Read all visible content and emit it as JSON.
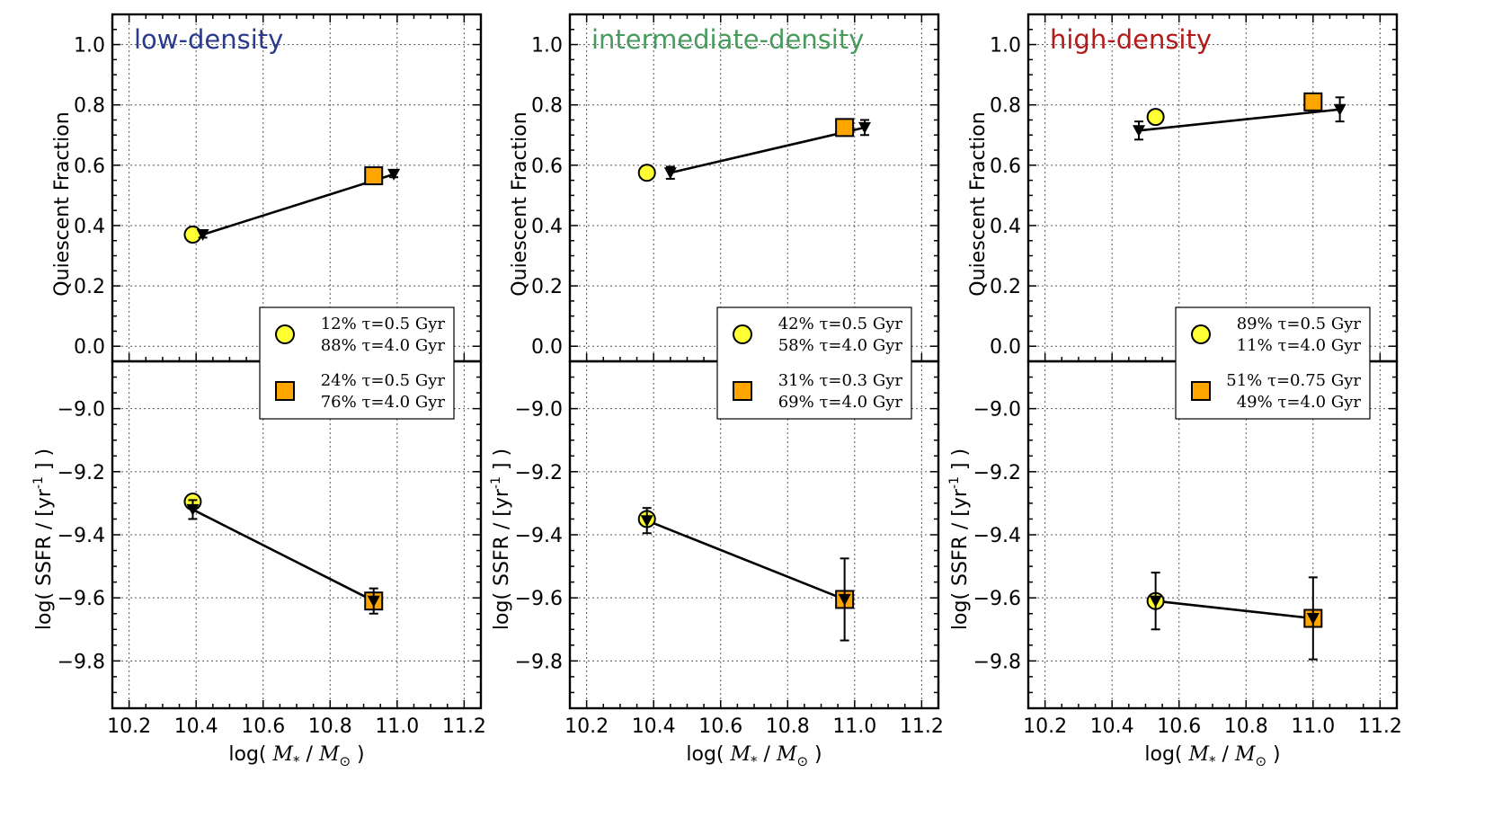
{
  "figure": {
    "xlabel_text": "log(",
    "xlabel_math_mass": "M",
    "xlabel_math_mass_sub": "*",
    "xlabel_sep": " / ",
    "xlabel_math_sun": "M",
    "xlabel_math_sun_sub": "⊙",
    "xlabel_close": " )",
    "top_ylabel": "Quiescent Fraction",
    "bottom_ylabel_prefix": "log( SSFR / [yr",
    "bottom_ylabel_sup": "-1",
    "bottom_ylabel_suffix": "] )"
  },
  "chart_data": [
    {
      "type": "scatter",
      "title": "low-density",
      "title_color": "#2b3b8c",
      "xlim": [
        10.15,
        11.25
      ],
      "x_ticks": [
        "10.2",
        "10.4",
        "10.6",
        "10.8",
        "11.0",
        "11.2"
      ],
      "grid": true,
      "quiescent_fraction": {
        "ylabel": "Quiescent Fraction",
        "ylim": [
          -0.05,
          1.1
        ],
        "y_ticks": [
          "0.0",
          "0.2",
          "0.4",
          "0.6",
          "0.8",
          "1.0"
        ],
        "observed": {
          "marker": "triangle-down",
          "x": [
            10.42,
            10.99
          ],
          "y": [
            0.37,
            0.57
          ],
          "err": [
            0.01,
            0.01
          ]
        },
        "model_circle": {
          "x": 10.39,
          "y": 0.37
        },
        "model_square": {
          "x": 10.93,
          "y": 0.565
        }
      },
      "ssfr": {
        "ylabel": "log( SSFR / [yr-1] )",
        "ylim": [
          -9.95,
          -8.85
        ],
        "y_ticks": [
          "−9.0",
          "−9.2",
          "−9.4",
          "−9.6",
          "−9.8"
        ],
        "observed": {
          "marker": "triangle-down",
          "x": [
            10.39,
            10.93
          ],
          "y": [
            -9.32,
            -9.61
          ],
          "err": [
            0.03,
            0.04
          ]
        },
        "model_circle": {
          "x": 10.39,
          "y": -9.295
        },
        "model_square": {
          "x": 10.93,
          "y": -9.61
        }
      },
      "legend": {
        "placement": "lower-right of top panel",
        "entries": [
          {
            "marker": "circle",
            "color": "#ffff33",
            "line1": "12% τ=0.5 Gyr",
            "line2": "88% τ=4.0 Gyr"
          },
          {
            "marker": "square",
            "color": "#ffa500",
            "line1": "24% τ=0.5 Gyr",
            "line2": "76% τ=4.0 Gyr"
          }
        ]
      }
    },
    {
      "type": "scatter",
      "title": "intermediate-density",
      "title_color": "#4a9a5e",
      "xlim": [
        10.15,
        11.25
      ],
      "x_ticks": [
        "10.2",
        "10.4",
        "10.6",
        "10.8",
        "11.0",
        "11.2"
      ],
      "grid": true,
      "quiescent_fraction": {
        "ylabel": "Quiescent Fraction",
        "ylim": [
          -0.05,
          1.1
        ],
        "y_ticks": [
          "0.0",
          "0.2",
          "0.4",
          "0.6",
          "0.8",
          "1.0"
        ],
        "observed": {
          "marker": "triangle-down",
          "x": [
            10.45,
            11.03
          ],
          "y": [
            0.575,
            0.725
          ],
          "err": [
            0.02,
            0.025
          ]
        },
        "model_circle": {
          "x": 10.38,
          "y": 0.575
        },
        "model_square": {
          "x": 10.97,
          "y": 0.725
        }
      },
      "ssfr": {
        "ylabel": "log( SSFR / [yr-1] )",
        "ylim": [
          -9.95,
          -8.85
        ],
        "y_ticks": [
          "−9.0",
          "−9.2",
          "−9.4",
          "−9.6",
          "−9.8"
        ],
        "observed": {
          "marker": "triangle-down",
          "x": [
            10.38,
            10.97
          ],
          "y": [
            -9.355,
            -9.605
          ],
          "err": [
            0.04,
            0.13
          ]
        },
        "model_circle": {
          "x": 10.38,
          "y": -9.35
        },
        "model_square": {
          "x": 10.97,
          "y": -9.605
        }
      },
      "legend": {
        "placement": "lower-right of top panel",
        "entries": [
          {
            "marker": "circle",
            "color": "#ffff33",
            "line1": "42% τ=0.5 Gyr",
            "line2": "58% τ=4.0 Gyr"
          },
          {
            "marker": "square",
            "color": "#ffa500",
            "line1": "31% τ=0.3 Gyr",
            "line2": "69% τ=4.0 Gyr"
          }
        ]
      }
    },
    {
      "type": "scatter",
      "title": "high-density",
      "title_color": "#b31b1b",
      "xlim": [
        10.15,
        11.25
      ],
      "x_ticks": [
        "10.2",
        "10.4",
        "10.6",
        "10.8",
        "11.0",
        "11.2"
      ],
      "grid": true,
      "quiescent_fraction": {
        "ylabel": "Quiescent Fraction",
        "ylim": [
          -0.05,
          1.1
        ],
        "y_ticks": [
          "0.0",
          "0.2",
          "0.4",
          "0.6",
          "0.8",
          "1.0"
        ],
        "observed": {
          "marker": "triangle-down",
          "x": [
            10.48,
            11.08
          ],
          "y": [
            0.715,
            0.785
          ],
          "err": [
            0.03,
            0.04
          ]
        },
        "model_circle": {
          "x": 10.53,
          "y": 0.76
        },
        "model_square": {
          "x": 11.0,
          "y": 0.81
        }
      },
      "ssfr": {
        "ylabel": "log( SSFR / [yr-1] )",
        "ylim": [
          -9.95,
          -8.85
        ],
        "y_ticks": [
          "−9.0",
          "−9.2",
          "−9.4",
          "−9.6",
          "−9.8"
        ],
        "observed": {
          "marker": "triangle-down",
          "x": [
            10.53,
            11.0
          ],
          "y": [
            -9.61,
            -9.665
          ],
          "err": [
            0.09,
            0.13
          ]
        },
        "model_circle": {
          "x": 10.53,
          "y": -9.61
        },
        "model_square": {
          "x": 11.0,
          "y": -9.665
        }
      },
      "legend": {
        "placement": "lower-right of top panel",
        "entries": [
          {
            "marker": "circle",
            "color": "#ffff33",
            "line1": "89% τ=0.5 Gyr",
            "line2": "11% τ=4.0 Gyr"
          },
          {
            "marker": "square",
            "color": "#ffa500",
            "line1": "51% τ=0.75 Gyr",
            "line2": "49% τ=4.0 Gyr"
          }
        ]
      }
    }
  ]
}
